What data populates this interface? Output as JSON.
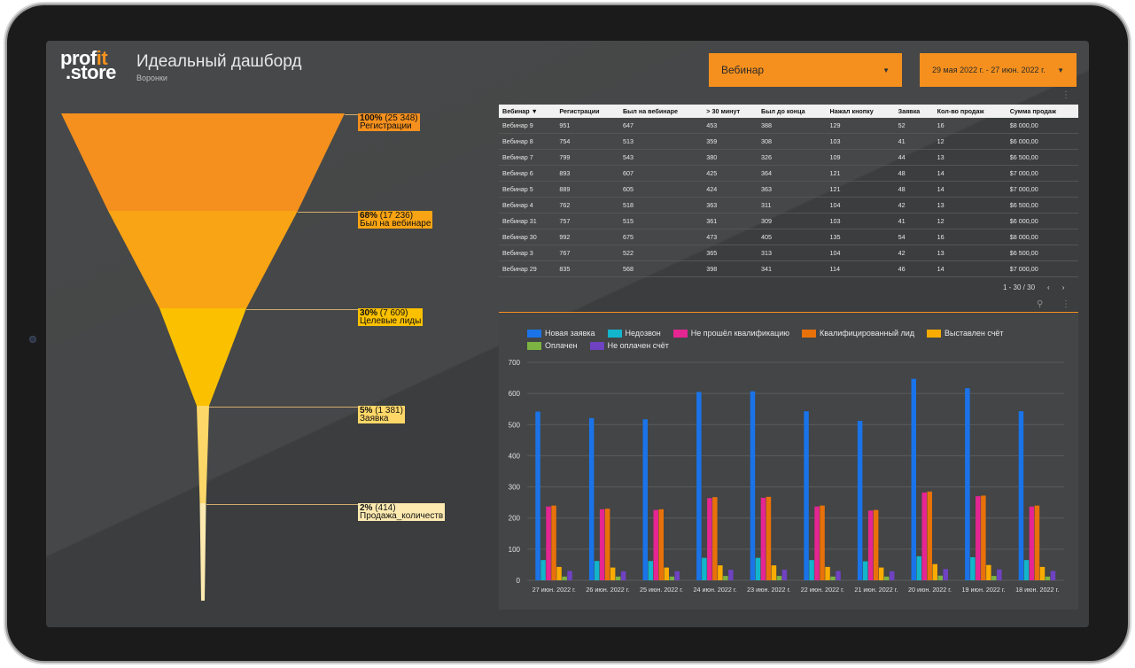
{
  "app": {
    "logo_line1": "prof",
    "logo_it": "it",
    "logo_line2": ".store",
    "title": "Идеальный дашборд",
    "subtitle": "Воронки"
  },
  "filters": {
    "webinar_label": "Вебинар",
    "date_range": "29 мая 2022 г. - 27 июн. 2022 г."
  },
  "funnel": [
    {
      "pct": "100%",
      "count": "(25 348)",
      "name": "Регистрации",
      "fraction": 1.0,
      "color": "#f5901e"
    },
    {
      "pct": "68%",
      "count": "(17 236)",
      "name": "Был на вебинаре",
      "fraction": 0.68,
      "color": "#f9a414"
    },
    {
      "pct": "30%",
      "count": "(7 609)",
      "name": "Целевые лиды",
      "fraction": 0.3,
      "color": "#fbc100"
    },
    {
      "pct": "5%",
      "count": "(1 381)",
      "name": "Заявка",
      "fraction": 0.05,
      "color": "#fdd768"
    },
    {
      "pct": "2%",
      "count": "(414)",
      "name": "Продажа_количеств",
      "fraction": 0.02,
      "color": "#fdeab0"
    }
  ],
  "table": {
    "headers": [
      "Вебинар ▼",
      "Регистрации",
      "Был на вебинаре",
      "> 30 минут",
      "Был до конца",
      "Нажал кнопку",
      "Заявка",
      "Кол-во продаж",
      "Сумма продаж"
    ],
    "rows": [
      [
        "Вебинар 9",
        "951",
        "647",
        "453",
        "388",
        "129",
        "52",
        "16",
        "$8 000,00"
      ],
      [
        "Вебинар 8",
        "754",
        "513",
        "359",
        "308",
        "103",
        "41",
        "12",
        "$6 000,00"
      ],
      [
        "Вебинар 7",
        "799",
        "543",
        "380",
        "326",
        "109",
        "44",
        "13",
        "$6 500,00"
      ],
      [
        "Вебинар 6",
        "893",
        "607",
        "425",
        "364",
        "121",
        "48",
        "14",
        "$7 000,00"
      ],
      [
        "Вебинар 5",
        "889",
        "605",
        "424",
        "363",
        "121",
        "48",
        "14",
        "$7 000,00"
      ],
      [
        "Вебинар 4",
        "762",
        "518",
        "363",
        "311",
        "104",
        "42",
        "13",
        "$6 500,00"
      ],
      [
        "Вебинар 31",
        "757",
        "515",
        "361",
        "309",
        "103",
        "41",
        "12",
        "$6 000,00"
      ],
      [
        "Вебинар 30",
        "992",
        "675",
        "473",
        "405",
        "135",
        "54",
        "16",
        "$8 000,00"
      ],
      [
        "Вебинар 3",
        "767",
        "522",
        "365",
        "313",
        "104",
        "42",
        "13",
        "$6 500,00"
      ],
      [
        "Вебинар 29",
        "835",
        "568",
        "398",
        "341",
        "114",
        "46",
        "14",
        "$7 000,00"
      ]
    ],
    "pager_text": "1 - 30 / 30",
    "prev_icon": "‹",
    "next_icon": "›"
  },
  "chart_data": {
    "type": "bar",
    "categories": [
      "27 июн. 2022 г.",
      "26 июн. 2022 г.",
      "25 июн. 2022 г.",
      "24 июн. 2022 г.",
      "23 июн. 2022 г.",
      "22 июн. 2022 г.",
      "21 июн. 2022 г.",
      "20 июн. 2022 г.",
      "19 июн. 2022 г.",
      "18 июн. 2022 г."
    ],
    "ylim": [
      0,
      700
    ],
    "yticks": [
      0,
      100,
      200,
      300,
      400,
      500,
      600,
      700
    ],
    "legend_position": "top",
    "grid": true,
    "series": [
      {
        "name": "Новая заявка",
        "color": "#1a73e8",
        "values": [
          542,
          521,
          517,
          605,
          607,
          543,
          512,
          647,
          617,
          543
        ]
      },
      {
        "name": "Недозвон",
        "color": "#12b5cb",
        "values": [
          65,
          62,
          62,
          72,
          72,
          65,
          61,
          77,
          74,
          65
        ]
      },
      {
        "name": "Не прошёл квалификацию",
        "color": "#e52592",
        "values": [
          237,
          228,
          226,
          264,
          265,
          237,
          224,
          282,
          270,
          237
        ]
      },
      {
        "name": "Квалифицированный лид",
        "color": "#e8710a",
        "values": [
          240,
          230,
          228,
          267,
          268,
          240,
          226,
          285,
          272,
          240
        ]
      },
      {
        "name": "Выставлен счёт",
        "color": "#f9ab00",
        "values": [
          43,
          41,
          41,
          48,
          48,
          43,
          41,
          52,
          49,
          43
        ]
      },
      {
        "name": "Оплачен",
        "color": "#7cb342",
        "values": [
          12,
          12,
          12,
          14,
          14,
          12,
          12,
          15,
          14,
          12
        ]
      },
      {
        "name": "Не оплачен счёт",
        "color": "#6f42c1",
        "values": [
          30,
          29,
          29,
          34,
          34,
          30,
          29,
          36,
          35,
          30
        ]
      }
    ]
  }
}
